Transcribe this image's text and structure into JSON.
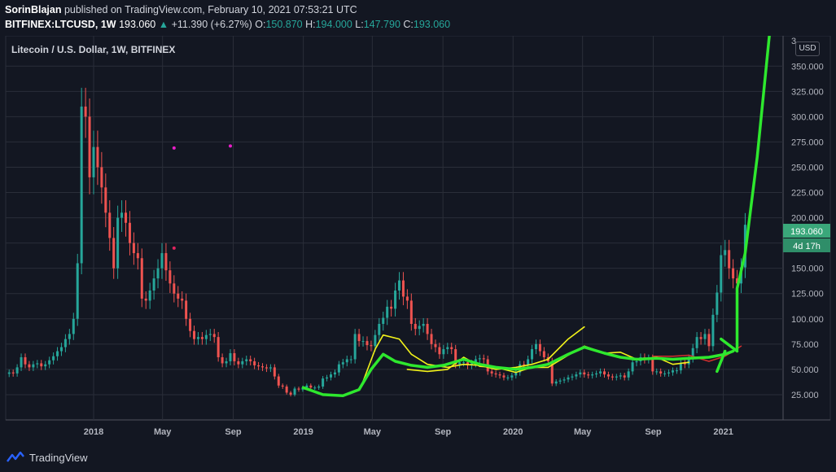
{
  "header": {
    "author": "SorinBlajan",
    "published_text": "published on TradingView.com, February 10, 2021 07:53:21 UTC",
    "symbol": "BITFINEX:LTCUSD, 1W",
    "last_price": "193.060",
    "change_arrow": "▲",
    "change": "+11.390 (+6.27%)",
    "o_label": "O:",
    "o_value": "150.870",
    "h_label": "H:",
    "h_value": "194.000",
    "l_label": "L:",
    "l_value": "147.790",
    "c_label": "C:",
    "c_value": "193.060"
  },
  "chart_title": "Litecoin / U.S. Dollar, 1W, BITFINEX",
  "currency_button": "USD",
  "price_badge": "193.060",
  "countdown_badge": "4d 17h",
  "brand": "TradingView",
  "colors": {
    "background": "#131722",
    "up": "#26a69a",
    "down": "#ef5350",
    "green_draw": "#2ee82e",
    "yellow_draw": "#f2f21a",
    "badge": "#3aa77a"
  },
  "chart_data": {
    "type": "candlestick",
    "title": "Litecoin / U.S. Dollar, 1W, BITFINEX",
    "ylim": [
      0,
      380
    ],
    "y_ticks": [
      25,
      50,
      75,
      100,
      125,
      150,
      175,
      200,
      225,
      250,
      275,
      300,
      325,
      350
    ],
    "y_tick_labels": [
      "25.000",
      "50.000",
      "75.000",
      "100.000",
      "125.000",
      "150.000",
      "175.000",
      "200.000",
      "225.000",
      "250.000",
      "275.000",
      "300.000",
      "325.000",
      "350.000"
    ],
    "y_top_partial_label": "3",
    "x_labels": [
      {
        "label": "2018",
        "date": "2018-01-01"
      },
      {
        "label": "May",
        "date": "2018-05-01"
      },
      {
        "label": "Sep",
        "date": "2018-09-01"
      },
      {
        "label": "2019",
        "date": "2019-01-01"
      },
      {
        "label": "May",
        "date": "2019-05-01"
      },
      {
        "label": "Sep",
        "date": "2019-09-01"
      },
      {
        "label": "2020",
        "date": "2020-01-01"
      },
      {
        "label": "May",
        "date": "2020-05-01"
      },
      {
        "label": "Sep",
        "date": "2020-09-01"
      },
      {
        "label": "2021",
        "date": "2021-01-01"
      }
    ],
    "x_start": "2017-08-01",
    "x_end": "2021-04-15",
    "last_close": 193.06,
    "closes": [
      {
        "d": "2017-08-07",
        "c": 47
      },
      {
        "d": "2017-08-14",
        "c": 46
      },
      {
        "d": "2017-08-21",
        "c": 52
      },
      {
        "d": "2017-08-28",
        "c": 62
      },
      {
        "d": "2017-09-04",
        "c": 55
      },
      {
        "d": "2017-09-11",
        "c": 52
      },
      {
        "d": "2017-09-18",
        "c": 55
      },
      {
        "d": "2017-09-25",
        "c": 56
      },
      {
        "d": "2017-10-02",
        "c": 53
      },
      {
        "d": "2017-10-09",
        "c": 55
      },
      {
        "d": "2017-10-16",
        "c": 59
      },
      {
        "d": "2017-10-23",
        "c": 63
      },
      {
        "d": "2017-10-30",
        "c": 68
      },
      {
        "d": "2017-11-06",
        "c": 72
      },
      {
        "d": "2017-11-13",
        "c": 80
      },
      {
        "d": "2017-11-20",
        "c": 85
      },
      {
        "d": "2017-11-27",
        "c": 100
      },
      {
        "d": "2017-12-04",
        "c": 155
      },
      {
        "d": "2017-12-11",
        "c": 310
      },
      {
        "d": "2017-12-18",
        "c": 300
      },
      {
        "d": "2017-12-25",
        "c": 240
      },
      {
        "d": "2018-01-01",
        "c": 270
      },
      {
        "d": "2018-01-08",
        "c": 250
      },
      {
        "d": "2018-01-15",
        "c": 230
      },
      {
        "d": "2018-01-22",
        "c": 205
      },
      {
        "d": "2018-01-29",
        "c": 180
      },
      {
        "d": "2018-02-05",
        "c": 150
      },
      {
        "d": "2018-02-12",
        "c": 200
      },
      {
        "d": "2018-02-19",
        "c": 205
      },
      {
        "d": "2018-02-26",
        "c": 195
      },
      {
        "d": "2018-03-05",
        "c": 175
      },
      {
        "d": "2018-03-12",
        "c": 165
      },
      {
        "d": "2018-03-19",
        "c": 160
      },
      {
        "d": "2018-03-26",
        "c": 120
      },
      {
        "d": "2018-04-02",
        "c": 118
      },
      {
        "d": "2018-04-09",
        "c": 128
      },
      {
        "d": "2018-04-16",
        "c": 140
      },
      {
        "d": "2018-04-23",
        "c": 150
      },
      {
        "d": "2018-04-30",
        "c": 165
      },
      {
        "d": "2018-05-07",
        "c": 148
      },
      {
        "d": "2018-05-14",
        "c": 135
      },
      {
        "d": "2018-05-21",
        "c": 125
      },
      {
        "d": "2018-05-28",
        "c": 120
      },
      {
        "d": "2018-06-04",
        "c": 118
      },
      {
        "d": "2018-06-11",
        "c": 100
      },
      {
        "d": "2018-06-18",
        "c": 88
      },
      {
        "d": "2018-06-25",
        "c": 80
      },
      {
        "d": "2018-07-02",
        "c": 82
      },
      {
        "d": "2018-07-09",
        "c": 80
      },
      {
        "d": "2018-07-16",
        "c": 84
      },
      {
        "d": "2018-07-23",
        "c": 85
      },
      {
        "d": "2018-07-30",
        "c": 82
      },
      {
        "d": "2018-08-06",
        "c": 62
      },
      {
        "d": "2018-08-13",
        "c": 56
      },
      {
        "d": "2018-08-20",
        "c": 58
      },
      {
        "d": "2018-08-27",
        "c": 66
      },
      {
        "d": "2018-09-03",
        "c": 58
      },
      {
        "d": "2018-09-10",
        "c": 55
      },
      {
        "d": "2018-09-17",
        "c": 58
      },
      {
        "d": "2018-09-24",
        "c": 60
      },
      {
        "d": "2018-10-01",
        "c": 58
      },
      {
        "d": "2018-10-08",
        "c": 54
      },
      {
        "d": "2018-10-15",
        "c": 53
      },
      {
        "d": "2018-10-22",
        "c": 52
      },
      {
        "d": "2018-10-29",
        "c": 51
      },
      {
        "d": "2018-11-05",
        "c": 52
      },
      {
        "d": "2018-11-12",
        "c": 43
      },
      {
        "d": "2018-11-19",
        "c": 34
      },
      {
        "d": "2018-11-26",
        "c": 33
      },
      {
        "d": "2018-12-03",
        "c": 27
      },
      {
        "d": "2018-12-10",
        "c": 25
      },
      {
        "d": "2018-12-17",
        "c": 31
      },
      {
        "d": "2018-12-24",
        "c": 30
      },
      {
        "d": "2018-12-31",
        "c": 32
      },
      {
        "d": "2019-01-07",
        "c": 34
      },
      {
        "d": "2019-01-14",
        "c": 32
      },
      {
        "d": "2019-01-21",
        "c": 32
      },
      {
        "d": "2019-01-28",
        "c": 33
      },
      {
        "d": "2019-02-04",
        "c": 41
      },
      {
        "d": "2019-02-11",
        "c": 42
      },
      {
        "d": "2019-02-18",
        "c": 45
      },
      {
        "d": "2019-02-25",
        "c": 47
      },
      {
        "d": "2019-03-04",
        "c": 55
      },
      {
        "d": "2019-03-11",
        "c": 57
      },
      {
        "d": "2019-03-18",
        "c": 60
      },
      {
        "d": "2019-03-25",
        "c": 60
      },
      {
        "d": "2019-04-01",
        "c": 85
      },
      {
        "d": "2019-04-08",
        "c": 78
      },
      {
        "d": "2019-04-15",
        "c": 78
      },
      {
        "d": "2019-04-22",
        "c": 74
      },
      {
        "d": "2019-04-29",
        "c": 73
      },
      {
        "d": "2019-05-06",
        "c": 84
      },
      {
        "d": "2019-05-13",
        "c": 95
      },
      {
        "d": "2019-05-20",
        "c": 101
      },
      {
        "d": "2019-05-27",
        "c": 112
      },
      {
        "d": "2019-06-03",
        "c": 110
      },
      {
        "d": "2019-06-10",
        "c": 128
      },
      {
        "d": "2019-06-17",
        "c": 138
      },
      {
        "d": "2019-06-24",
        "c": 122
      },
      {
        "d": "2019-07-01",
        "c": 118
      },
      {
        "d": "2019-07-08",
        "c": 95
      },
      {
        "d": "2019-07-15",
        "c": 90
      },
      {
        "d": "2019-07-22",
        "c": 93
      },
      {
        "d": "2019-07-29",
        "c": 95
      },
      {
        "d": "2019-08-05",
        "c": 85
      },
      {
        "d": "2019-08-12",
        "c": 75
      },
      {
        "d": "2019-08-19",
        "c": 72
      },
      {
        "d": "2019-08-26",
        "c": 65
      },
      {
        "d": "2019-09-02",
        "c": 70
      },
      {
        "d": "2019-09-09",
        "c": 72
      },
      {
        "d": "2019-09-16",
        "c": 70
      },
      {
        "d": "2019-09-23",
        "c": 55
      },
      {
        "d": "2019-09-30",
        "c": 57
      },
      {
        "d": "2019-10-07",
        "c": 57
      },
      {
        "d": "2019-10-14",
        "c": 54
      },
      {
        "d": "2019-10-21",
        "c": 56
      },
      {
        "d": "2019-10-28",
        "c": 60
      },
      {
        "d": "2019-11-04",
        "c": 61
      },
      {
        "d": "2019-11-11",
        "c": 60
      },
      {
        "d": "2019-11-18",
        "c": 48
      },
      {
        "d": "2019-11-25",
        "c": 46
      },
      {
        "d": "2019-12-02",
        "c": 45
      },
      {
        "d": "2019-12-09",
        "c": 44
      },
      {
        "d": "2019-12-16",
        "c": 42
      },
      {
        "d": "2019-12-23",
        "c": 42
      },
      {
        "d": "2019-12-30",
        "c": 44
      },
      {
        "d": "2020-01-06",
        "c": 47
      },
      {
        "d": "2020-01-13",
        "c": 55
      },
      {
        "d": "2020-01-20",
        "c": 54
      },
      {
        "d": "2020-01-27",
        "c": 60
      },
      {
        "d": "2020-02-03",
        "c": 70
      },
      {
        "d": "2020-02-10",
        "c": 75
      },
      {
        "d": "2020-02-17",
        "c": 68
      },
      {
        "d": "2020-02-24",
        "c": 62
      },
      {
        "d": "2020-03-02",
        "c": 58
      },
      {
        "d": "2020-03-09",
        "c": 36
      },
      {
        "d": "2020-03-16",
        "c": 38
      },
      {
        "d": "2020-03-23",
        "c": 39
      },
      {
        "d": "2020-03-30",
        "c": 40
      },
      {
        "d": "2020-04-06",
        "c": 42
      },
      {
        "d": "2020-04-13",
        "c": 43
      },
      {
        "d": "2020-04-20",
        "c": 45
      },
      {
        "d": "2020-04-27",
        "c": 47
      },
      {
        "d": "2020-05-04",
        "c": 45
      },
      {
        "d": "2020-05-11",
        "c": 44
      },
      {
        "d": "2020-05-18",
        "c": 45
      },
      {
        "d": "2020-05-25",
        "c": 46
      },
      {
        "d": "2020-06-01",
        "c": 48
      },
      {
        "d": "2020-06-08",
        "c": 45
      },
      {
        "d": "2020-06-15",
        "c": 43
      },
      {
        "d": "2020-06-22",
        "c": 42
      },
      {
        "d": "2020-06-29",
        "c": 43
      },
      {
        "d": "2020-07-06",
        "c": 44
      },
      {
        "d": "2020-07-13",
        "c": 42
      },
      {
        "d": "2020-07-20",
        "c": 48
      },
      {
        "d": "2020-07-27",
        "c": 57
      },
      {
        "d": "2020-08-03",
        "c": 58
      },
      {
        "d": "2020-08-10",
        "c": 62
      },
      {
        "d": "2020-08-17",
        "c": 60
      },
      {
        "d": "2020-08-24",
        "c": 61
      },
      {
        "d": "2020-08-31",
        "c": 48
      },
      {
        "d": "2020-09-07",
        "c": 48
      },
      {
        "d": "2020-09-14",
        "c": 46
      },
      {
        "d": "2020-09-21",
        "c": 46
      },
      {
        "d": "2020-09-28",
        "c": 47
      },
      {
        "d": "2020-10-05",
        "c": 49
      },
      {
        "d": "2020-10-12",
        "c": 49
      },
      {
        "d": "2020-10-19",
        "c": 56
      },
      {
        "d": "2020-10-26",
        "c": 55
      },
      {
        "d": "2020-11-02",
        "c": 61
      },
      {
        "d": "2020-11-09",
        "c": 71
      },
      {
        "d": "2020-11-16",
        "c": 82
      },
      {
        "d": "2020-11-23",
        "c": 80
      },
      {
        "d": "2020-11-30",
        "c": 85
      },
      {
        "d": "2020-12-07",
        "c": 73
      },
      {
        "d": "2020-12-14",
        "c": 104
      },
      {
        "d": "2020-12-21",
        "c": 126
      },
      {
        "d": "2020-12-28",
        "c": 163
      },
      {
        "d": "2021-01-04",
        "c": 168
      },
      {
        "d": "2021-01-11",
        "c": 150
      },
      {
        "d": "2021-01-18",
        "c": 140
      },
      {
        "d": "2021-01-25",
        "c": 135
      },
      {
        "d": "2021-02-01",
        "c": 150.87
      },
      {
        "d": "2021-02-08",
        "c": 193.06
      }
    ],
    "markers": [
      {
        "date": "2018-05-21",
        "value": 269,
        "color": "#e91ec8"
      },
      {
        "date": "2018-08-27",
        "value": 271,
        "color": "#e91ec8"
      },
      {
        "date": "2018-05-21",
        "value": 170,
        "color": "#e0245e"
      }
    ],
    "drawings": {
      "green": [
        [
          [
            "2019-01-01",
            32
          ],
          [
            "2019-02-04",
            25
          ],
          [
            "2019-03-11",
            24
          ],
          [
            "2019-04-08",
            30
          ],
          [
            "2019-04-29",
            50
          ],
          [
            "2019-05-20",
            65
          ],
          [
            "2019-06-10",
            58
          ],
          [
            "2019-07-08",
            54
          ],
          [
            "2019-08-05",
            52
          ],
          [
            "2019-09-02",
            54
          ],
          [
            "2019-10-07",
            60
          ],
          [
            "2019-11-04",
            55
          ],
          [
            "2019-12-02",
            52
          ],
          [
            "2020-01-06",
            50
          ],
          [
            "2020-02-03",
            52
          ],
          [
            "2020-03-02",
            55
          ],
          [
            "2020-04-06",
            65
          ],
          [
            "2020-05-04",
            72
          ],
          [
            "2020-06-08",
            66
          ],
          [
            "2020-07-06",
            62
          ],
          [
            "2020-08-03",
            60
          ],
          [
            "2020-09-07",
            61
          ],
          [
            "2020-10-05",
            60
          ],
          [
            "2020-11-02",
            61
          ],
          [
            "2020-12-07",
            62
          ],
          [
            "2021-01-04",
            65
          ],
          [
            "2021-01-18",
            68
          ]
        ],
        [
          [
            "2020-12-21",
            48
          ],
          [
            "2021-01-04",
            68
          ]
        ],
        [
          [
            "2020-12-28",
            80
          ],
          [
            "2021-01-25",
            68
          ]
        ],
        [
          [
            "2021-01-25",
            70
          ],
          [
            "2021-01-25",
            130
          ],
          [
            "2021-02-08",
            165
          ],
          [
            "2021-03-01",
            260
          ],
          [
            "2021-03-22",
            380
          ]
        ]
      ],
      "yellow": [
        [
          [
            "2019-04-15",
            38
          ],
          [
            "2019-05-06",
            70
          ],
          [
            "2019-05-20",
            84
          ],
          [
            "2019-06-17",
            80
          ],
          [
            "2019-07-08",
            65
          ],
          [
            "2019-08-05",
            55
          ],
          [
            "2019-09-09",
            52
          ],
          [
            "2019-10-07",
            55
          ],
          [
            "2019-11-04",
            54
          ],
          [
            "2019-12-02",
            50
          ],
          [
            "2020-01-06",
            52
          ],
          [
            "2020-02-03",
            55
          ],
          [
            "2020-03-02",
            60
          ],
          [
            "2020-04-06",
            80
          ],
          [
            "2020-05-04",
            92
          ]
        ],
        [
          [
            "2019-07-01",
            50
          ],
          [
            "2019-08-05",
            48
          ],
          [
            "2019-09-09",
            50
          ],
          [
            "2019-10-07",
            62
          ],
          [
            "2019-11-04",
            53
          ],
          [
            "2019-12-02",
            52
          ],
          [
            "2020-01-06",
            47
          ],
          [
            "2020-02-03",
            52
          ],
          [
            "2020-03-02",
            52
          ],
          [
            "2020-04-06",
            64
          ],
          [
            "2020-05-04",
            73
          ],
          [
            "2020-06-08",
            66
          ],
          [
            "2020-07-06",
            67
          ],
          [
            "2020-08-03",
            60
          ],
          [
            "2020-09-07",
            62
          ],
          [
            "2020-10-05",
            55
          ],
          [
            "2020-11-02",
            57
          ]
        ]
      ],
      "red": [
        [
          [
            "2020-08-31",
            63
          ],
          [
            "2020-10-05",
            63
          ],
          [
            "2020-11-02",
            64
          ],
          [
            "2020-12-07",
            58
          ],
          [
            "2021-01-04",
            63
          ],
          [
            "2021-02-01",
            73
          ]
        ]
      ]
    }
  }
}
